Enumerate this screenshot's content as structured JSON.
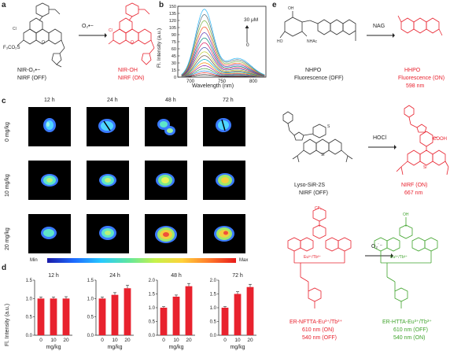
{
  "panels": {
    "a": "a",
    "b": "b",
    "c": "c",
    "d": "d",
    "e": "e"
  },
  "panel_a": {
    "left_name": "NIR-O₂•−",
    "left_state": "NIRF (OFF)",
    "arrow_label": "O₂•−",
    "right_name": "NIR-OH",
    "right_state": "NIRF (ON)",
    "left_group": "F₃CO₂S",
    "cl": "Cl"
  },
  "chart_data": {
    "type": "line",
    "ylabel": "Fl. Intensity (a.u.)",
    "xlabel": "Wavelength (nm)",
    "xlim": [
      680,
      820
    ],
    "ylim": [
      0,
      150
    ],
    "x_ticks": [
      700,
      750,
      800
    ],
    "y_ticks": [
      0,
      15,
      30,
      45,
      60,
      75,
      90,
      105,
      120,
      135,
      150
    ],
    "annotation_top": "30 μM",
    "annotation_bottom": "0",
    "peak_wavelength": 722,
    "series_peaks": [
      5,
      9,
      13,
      18,
      24,
      30,
      37,
      45,
      53,
      62,
      72,
      82,
      93,
      105,
      118,
      131,
      142
    ],
    "series_colors": [
      "#111111",
      "#e53935",
      "#1e88e5",
      "#43a047",
      "#8e24aa",
      "#fb8c00",
      "#00acc1",
      "#6d4c41",
      "#c0ca33",
      "#3949ab",
      "#d81b60",
      "#00897b",
      "#5e35b1",
      "#f4511e",
      "#7cb342",
      "#546e7a",
      "#29b6f6"
    ]
  },
  "panel_c": {
    "time_labels": [
      "12 h",
      "24 h",
      "48 h",
      "72 h"
    ],
    "dose_labels": [
      "0 mg/kg",
      "10 mg/kg",
      "20 mg/kg"
    ],
    "colorbar_min": "Min",
    "colorbar_max": "Max"
  },
  "panel_d": {
    "ylabel": "Fl. Intensity (a.u.)",
    "xlabel": "mg/kg",
    "charts": [
      {
        "title": "12 h",
        "categories": [
          "0",
          "10",
          "20"
        ],
        "values": [
          1.0,
          1.0,
          1.0
        ],
        "errors": [
          0.04,
          0.04,
          0.05
        ],
        "ylim": [
          0,
          1.5
        ],
        "yticks": [
          "0.0",
          "0.5",
          "1.0",
          "1.5"
        ]
      },
      {
        "title": "24 h",
        "categories": [
          "0",
          "10",
          "20"
        ],
        "values": [
          1.0,
          1.1,
          1.28
        ],
        "errors": [
          0.04,
          0.06,
          0.08
        ],
        "ylim": [
          0,
          1.5
        ],
        "yticks": [
          "0.0",
          "0.5",
          "1.0",
          "1.5"
        ]
      },
      {
        "title": "48 h",
        "categories": [
          "0",
          "10",
          "20"
        ],
        "values": [
          1.0,
          1.4,
          1.78
        ],
        "errors": [
          0.04,
          0.06,
          0.1
        ],
        "ylim": [
          0,
          2.0
        ],
        "yticks": [
          "0.0",
          "0.5",
          "1.0",
          "1.5",
          "2.0"
        ]
      },
      {
        "title": "72 h",
        "categories": [
          "0",
          "10",
          "20"
        ],
        "values": [
          1.0,
          1.5,
          1.75
        ],
        "errors": [
          0.04,
          0.08,
          0.1
        ],
        "ylim": [
          0,
          2.0
        ],
        "yticks": [
          "0.0",
          "0.5",
          "1.0",
          "1.5",
          "2.0"
        ]
      }
    ],
    "bar_color": "#e8222e"
  },
  "panel_e": {
    "s1_left_name": "NHPO",
    "s1_left_state": "Fluorescence (OFF)",
    "s1_arrow": "NAG",
    "s1_right_name": "HHPO",
    "s1_right_state": "Fluorescence (ON)",
    "s1_right_nm": "598 nm",
    "s2_left_name": "Lyso-SiR-2S",
    "s2_left_state": "NIRF (OFF)",
    "s2_arrow": "HOCl",
    "s2_right_state": "NIRF  (ON)",
    "s2_right_nm": "667 nm",
    "s2_cooh": "COOH",
    "s3_left_name": "ER-NFTTA-Eu³⁺/Tb³⁺",
    "s3_left_nm1": "610 nm (ON)",
    "s3_left_nm2": "540 nm (OFF)",
    "s3_arrow": "O₂˙⁻",
    "s3_right_name": "ER-HTTA-Eu³⁺/Tb³⁺",
    "s3_right_nm1": "610 nm (OFF)",
    "s3_right_nm2": "540 nm (ON)",
    "ion_label": "Eu³⁺/Tb³⁺",
    "cf3": "CF₃",
    "nhac": "NHAc",
    "oh": "OH",
    "ho": "HO"
  }
}
